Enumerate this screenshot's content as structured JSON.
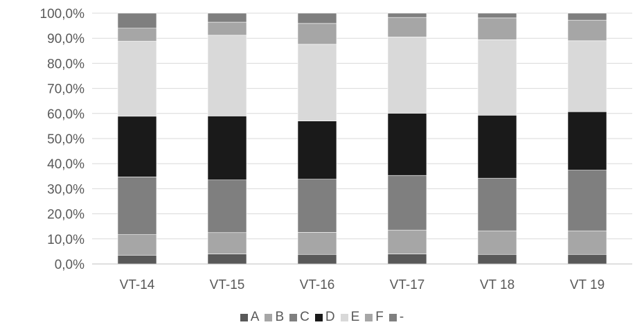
{
  "chart_data": {
    "type": "bar",
    "stacked": true,
    "percent": true,
    "categories": [
      "VT-14",
      "VT-15",
      "VT-16",
      "VT-17",
      "VT 18",
      "VT 19"
    ],
    "series": [
      {
        "name": "A",
        "color": "#595959",
        "values": [
          3.5,
          4.0,
          3.8,
          4.0,
          3.8,
          3.8
        ]
      },
      {
        "name": "B",
        "color": "#a6a6a6",
        "values": [
          8.2,
          8.5,
          8.8,
          9.5,
          9.4,
          9.4
        ]
      },
      {
        "name": "C",
        "color": "#7f7f7f",
        "values": [
          23.0,
          21.0,
          21.2,
          21.8,
          21.0,
          24.2
        ]
      },
      {
        "name": "D",
        "color": "#1a1a1a",
        "values": [
          24.2,
          25.5,
          23.2,
          24.8,
          25.1,
          23.3
        ]
      },
      {
        "name": "E",
        "color": "#d9d9d9",
        "values": [
          29.9,
          32.2,
          30.6,
          30.4,
          30.1,
          28.3
        ]
      },
      {
        "name": "F",
        "color": "#a6a6a6",
        "values": [
          5.2,
          5.2,
          8.3,
          7.8,
          8.7,
          8.2
        ]
      },
      {
        "name": "-",
        "color": "#7f7f7f",
        "values": [
          6.0,
          3.6,
          4.1,
          1.7,
          1.9,
          2.8
        ]
      }
    ],
    "yticks": [
      "0,0%",
      "10,0%",
      "20,0%",
      "30,0%",
      "40,0%",
      "50,0%",
      "60,0%",
      "70,0%",
      "80,0%",
      "90,0%",
      "100,0%"
    ],
    "ylim": [
      0,
      100
    ],
    "grid": true,
    "legend_position": "bottom"
  }
}
